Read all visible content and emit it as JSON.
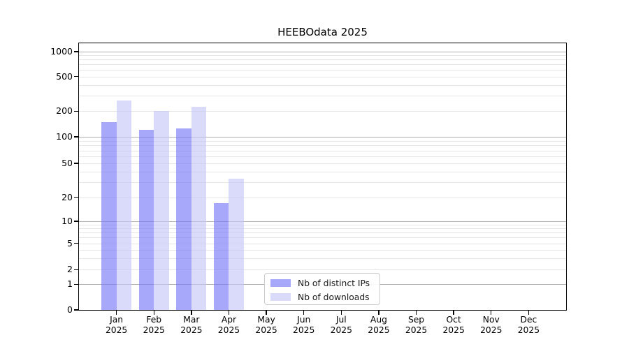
{
  "chart_data": {
    "type": "bar",
    "title": "HEEBOdata 2025",
    "categories": [
      "Jan",
      "Feb",
      "Mar",
      "Apr",
      "May",
      "Jun",
      "Jul",
      "Aug",
      "Sep",
      "Oct",
      "Nov",
      "Dec"
    ],
    "year_label": "2025",
    "series": [
      {
        "name": "Nb of distinct IPs",
        "color": "rgba(119,119,247,0.64)",
        "values": [
          150,
          120,
          125,
          17,
          null,
          null,
          null,
          null,
          null,
          null,
          null,
          null
        ]
      },
      {
        "name": "Nb of downloads",
        "color": "rgba(197,197,247,0.64)",
        "values": [
          265,
          200,
          225,
          33,
          null,
          null,
          null,
          null,
          null,
          null,
          null,
          null
        ]
      }
    ],
    "y_axis": {
      "scale": "log-above-1-with-zero-baseline",
      "tick_labels": [
        "0",
        "1",
        "2",
        "5",
        "10",
        "20",
        "50",
        "100",
        "200",
        "500",
        "1000"
      ],
      "ticks": [
        {
          "v": 0,
          "f": 0.0
        },
        {
          "v": 1,
          "f": 0.096
        },
        {
          "v": 2,
          "f": 0.151
        },
        {
          "v": 5,
          "f": 0.25
        },
        {
          "v": 10,
          "f": 0.332
        },
        {
          "v": 20,
          "f": 0.422
        },
        {
          "v": 50,
          "f": 0.55
        },
        {
          "v": 100,
          "f": 0.649
        },
        {
          "v": 200,
          "f": 0.745
        },
        {
          "v": 500,
          "f": 0.875
        },
        {
          "v": 1000,
          "f": 0.969
        }
      ]
    },
    "grid": {
      "major_values": [
        1,
        10,
        100,
        1000
      ],
      "minor_values": [
        2,
        3,
        4,
        5,
        6,
        7,
        8,
        9,
        20,
        30,
        40,
        50,
        60,
        70,
        80,
        90,
        200,
        300,
        400,
        500,
        600,
        700,
        800,
        900
      ],
      "major_color": "#b0b0b0",
      "minor_color": "#e6e6e6"
    },
    "legend": {
      "position": "lower-center-left-inside"
    },
    "colors": {
      "bar_distinct_ips_rendered": "#a8a8f8",
      "bar_downloads_rendered": "#dadafa",
      "axis": "#000000",
      "text": "#1a1a1a"
    }
  }
}
